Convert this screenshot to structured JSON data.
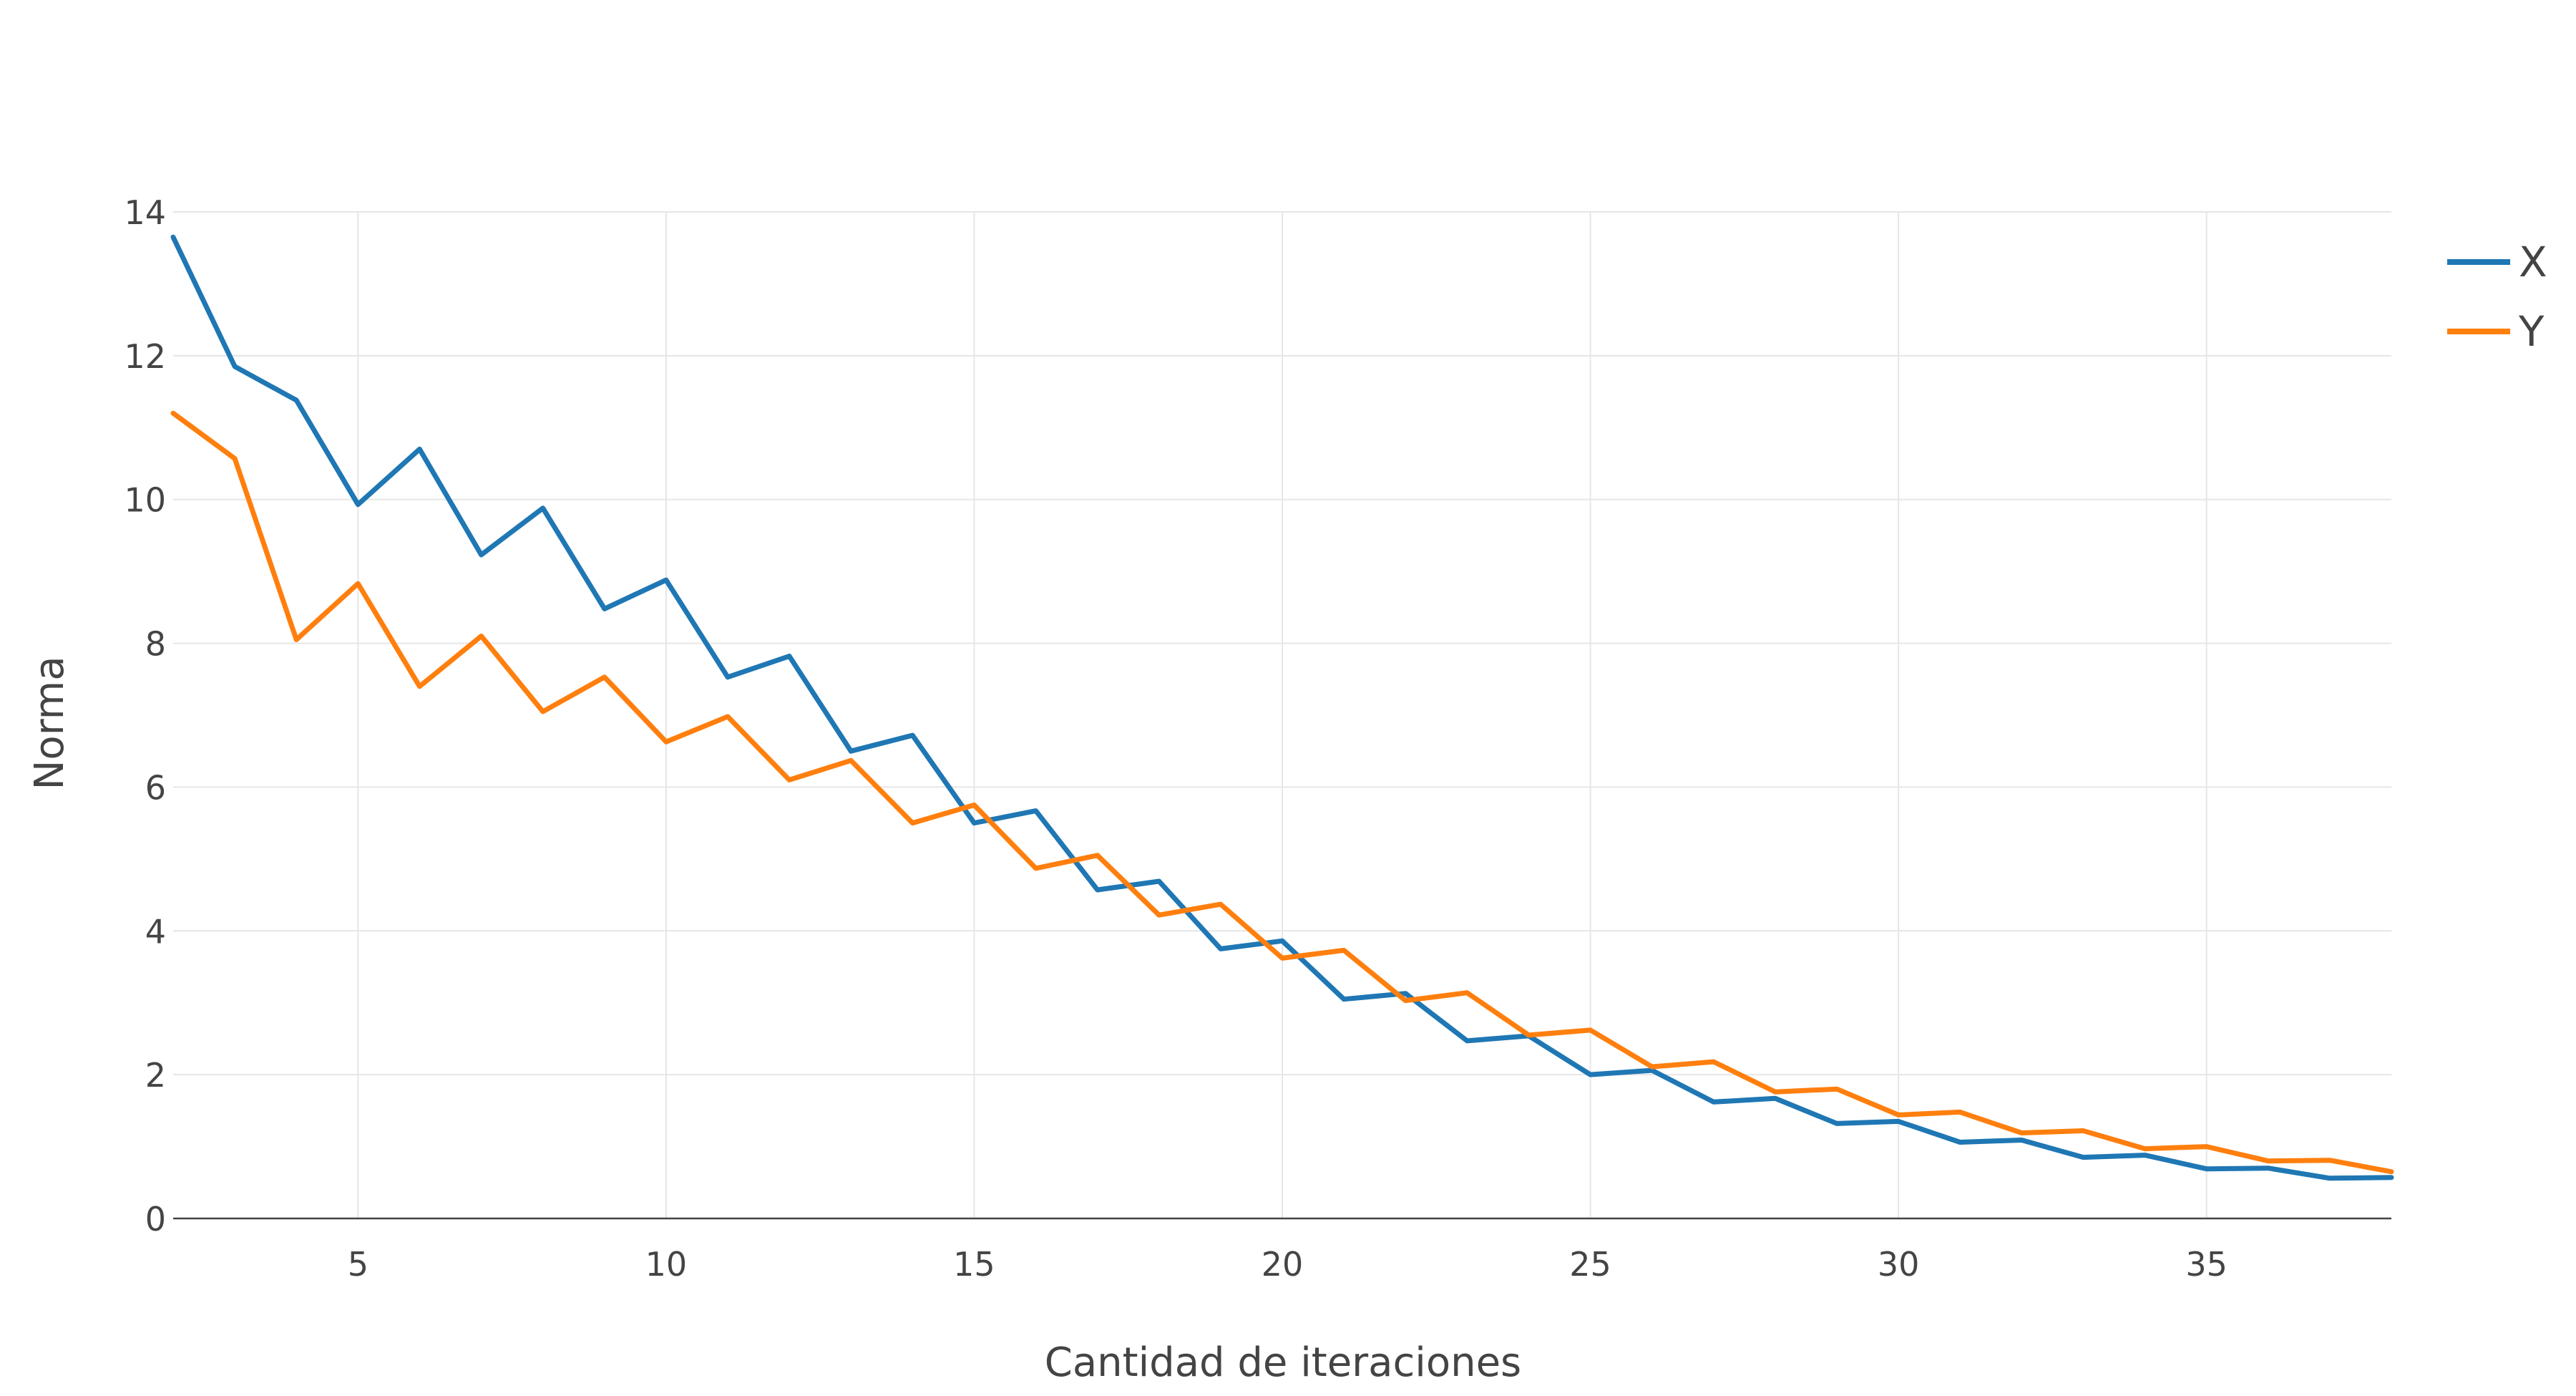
{
  "chart_data": {
    "type": "line",
    "title": "",
    "xlabel": "Cantidad de iteraciones",
    "ylabel": "Norma",
    "xlim": [
      2,
      38
    ],
    "ylim": [
      0,
      14
    ],
    "xticks": [
      5,
      10,
      15,
      20,
      25,
      30,
      35
    ],
    "yticks": [
      0,
      2,
      4,
      6,
      8,
      10,
      12,
      14
    ],
    "grid": true,
    "legend_position": "top-right",
    "x": [
      2,
      3,
      4,
      5,
      6,
      7,
      8,
      9,
      10,
      11,
      12,
      13,
      14,
      15,
      16,
      17,
      18,
      19,
      20,
      21,
      22,
      23,
      24,
      25,
      26,
      27,
      28,
      29,
      30,
      31,
      32,
      33,
      34,
      35,
      36,
      37,
      38
    ],
    "series": [
      {
        "name": "X",
        "color": "#1f77b4",
        "values": [
          13.65,
          11.85,
          11.38,
          9.93,
          10.7,
          9.23,
          9.88,
          8.48,
          8.88,
          7.53,
          7.82,
          6.5,
          6.72,
          5.5,
          5.67,
          4.57,
          4.69,
          3.75,
          3.86,
          3.05,
          3.13,
          2.47,
          2.54,
          2.0,
          2.06,
          1.62,
          1.67,
          1.32,
          1.35,
          1.06,
          1.09,
          0.85,
          0.88,
          0.69,
          0.7,
          0.56,
          0.57
        ]
      },
      {
        "name": "Y",
        "color": "#ff7f0e",
        "values": [
          11.2,
          10.57,
          8.05,
          8.83,
          7.4,
          8.1,
          7.05,
          7.53,
          6.63,
          6.98,
          6.1,
          6.37,
          5.5,
          5.75,
          4.87,
          5.05,
          4.22,
          4.37,
          3.62,
          3.73,
          3.03,
          3.14,
          2.55,
          2.62,
          2.11,
          2.18,
          1.76,
          1.8,
          1.44,
          1.48,
          1.19,
          1.22,
          0.97,
          1.0,
          0.8,
          0.81,
          0.65
        ]
      }
    ]
  }
}
